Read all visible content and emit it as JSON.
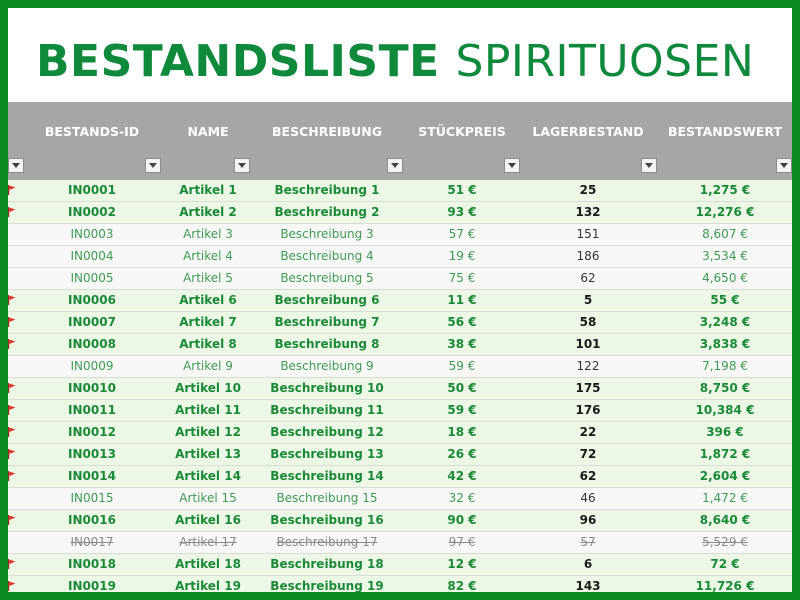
{
  "title": {
    "bold": "BESTANDSLISTE",
    "light": "SPIRITUOSEN"
  },
  "colors": {
    "frame": "#0a8a1e",
    "accent": "#0f8a3c",
    "header": "#a5a7a4",
    "highlight_row": "#ecf7e6",
    "flag": "#d9362b"
  },
  "icons": {
    "filter": "chevron-down-icon",
    "flag": "flag-icon"
  },
  "columns": [
    "BESTANDS-ID",
    "NAME",
    "BESCHREIBUNG",
    "STÜCKPREIS",
    "LAGERBESTAND",
    "BESTANDSWERT"
  ],
  "rows": [
    {
      "id": "IN0001",
      "name": "Artikel 1",
      "desc": "Beschreibung 1",
      "price": "51 €",
      "stock": "25",
      "value": "1,275 €",
      "style": "highlight",
      "flag": true
    },
    {
      "id": "IN0002",
      "name": "Artikel 2",
      "desc": "Beschreibung 2",
      "price": "93 €",
      "stock": "132",
      "value": "12,276 €",
      "style": "highlight",
      "flag": true
    },
    {
      "id": "IN0003",
      "name": "Artikel 3",
      "desc": "Beschreibung 3",
      "price": "57 €",
      "stock": "151",
      "value": "8,607 €",
      "style": "normal",
      "flag": false
    },
    {
      "id": "IN0004",
      "name": "Artikel 4",
      "desc": "Beschreibung 4",
      "price": "19 €",
      "stock": "186",
      "value": "3,534 €",
      "style": "normal",
      "flag": false
    },
    {
      "id": "IN0005",
      "name": "Artikel 5",
      "desc": "Beschreibung 5",
      "price": "75 €",
      "stock": "62",
      "value": "4,650 €",
      "style": "normal",
      "flag": false
    },
    {
      "id": "IN0006",
      "name": "Artikel 6",
      "desc": "Beschreibung 6",
      "price": "11 €",
      "stock": "5",
      "value": "55 €",
      "style": "highlight",
      "flag": true
    },
    {
      "id": "IN0007",
      "name": "Artikel 7",
      "desc": "Beschreibung 7",
      "price": "56 €",
      "stock": "58",
      "value": "3,248 €",
      "style": "highlight",
      "flag": true
    },
    {
      "id": "IN0008",
      "name": "Artikel 8",
      "desc": "Beschreibung 8",
      "price": "38 €",
      "stock": "101",
      "value": "3,838 €",
      "style": "highlight",
      "flag": true
    },
    {
      "id": "IN0009",
      "name": "Artikel 9",
      "desc": "Beschreibung 9",
      "price": "59 €",
      "stock": "122",
      "value": "7,198 €",
      "style": "normal",
      "flag": false
    },
    {
      "id": "IN0010",
      "name": "Artikel 10",
      "desc": "Beschreibung 10",
      "price": "50 €",
      "stock": "175",
      "value": "8,750 €",
      "style": "highlight",
      "flag": true
    },
    {
      "id": "IN0011",
      "name": "Artikel 11",
      "desc": "Beschreibung 11",
      "price": "59 €",
      "stock": "176",
      "value": "10,384 €",
      "style": "highlight",
      "flag": true
    },
    {
      "id": "IN0012",
      "name": "Artikel 12",
      "desc": "Beschreibung 12",
      "price": "18 €",
      "stock": "22",
      "value": "396 €",
      "style": "highlight",
      "flag": true
    },
    {
      "id": "IN0013",
      "name": "Artikel 13",
      "desc": "Beschreibung 13",
      "price": "26 €",
      "stock": "72",
      "value": "1,872 €",
      "style": "highlight",
      "flag": true
    },
    {
      "id": "IN0014",
      "name": "Artikel 14",
      "desc": "Beschreibung 14",
      "price": "42 €",
      "stock": "62",
      "value": "2,604 €",
      "style": "highlight",
      "flag": true
    },
    {
      "id": "IN0015",
      "name": "Artikel 15",
      "desc": "Beschreibung 15",
      "price": "32 €",
      "stock": "46",
      "value": "1,472 €",
      "style": "normal",
      "flag": false
    },
    {
      "id": "IN0016",
      "name": "Artikel 16",
      "desc": "Beschreibung 16",
      "price": "90 €",
      "stock": "96",
      "value": "8,640 €",
      "style": "highlight",
      "flag": true
    },
    {
      "id": "IN0017",
      "name": "Artikel 17",
      "desc": "Beschreibung 17",
      "price": "97 €",
      "stock": "57",
      "value": "5,529 €",
      "style": "deleted",
      "flag": false
    },
    {
      "id": "IN0018",
      "name": "Artikel 18",
      "desc": "Beschreibung 18",
      "price": "12 €",
      "stock": "6",
      "value": "72 €",
      "style": "highlight",
      "flag": true
    },
    {
      "id": "IN0019",
      "name": "Artikel 19",
      "desc": "Beschreibung 19",
      "price": "82 €",
      "stock": "143",
      "value": "11,726 €",
      "style": "highlight",
      "flag": true
    }
  ]
}
